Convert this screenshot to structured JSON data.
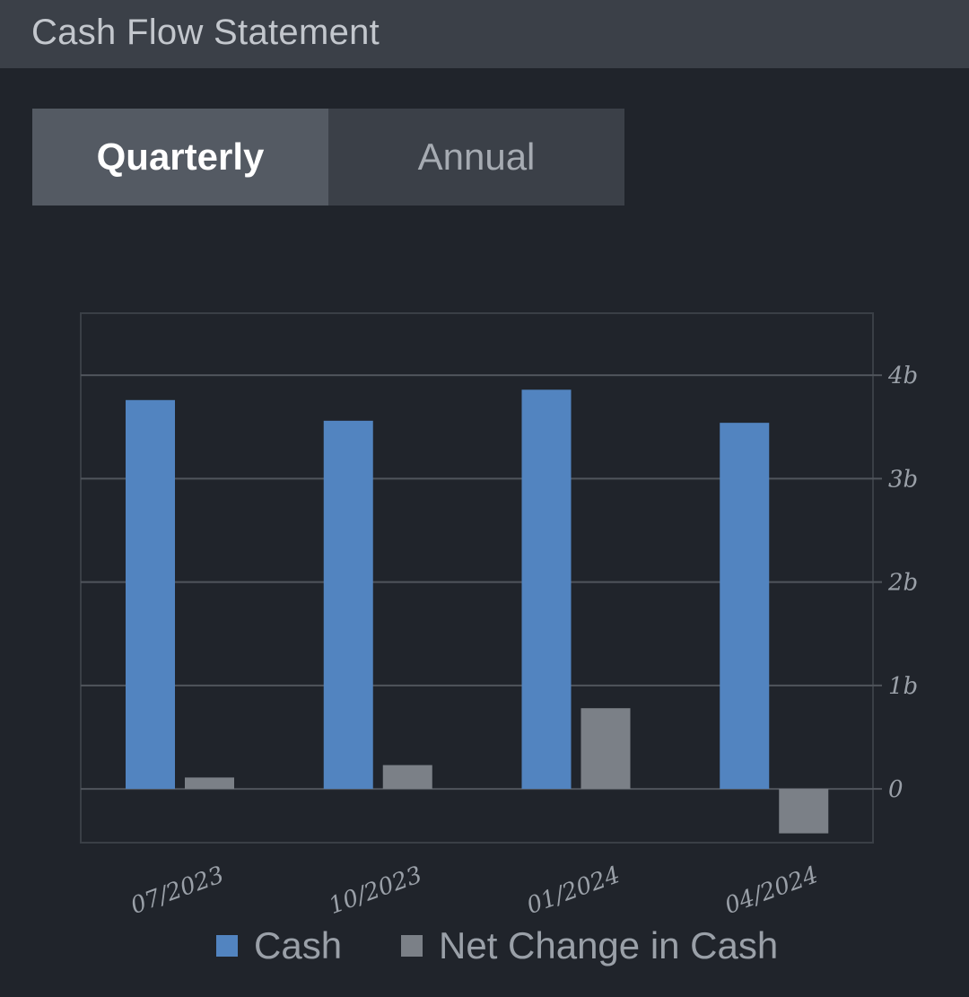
{
  "header": {
    "title": "Cash Flow Statement"
  },
  "tabs": [
    {
      "label": "Quarterly",
      "selected": true
    },
    {
      "label": "Annual",
      "selected": false
    }
  ],
  "colors": {
    "cash": "#5284c0",
    "net_change": "#7b8087",
    "gridline": "#50555c",
    "axis_text": "#9aa0a8"
  },
  "chart_data": {
    "type": "bar",
    "categories": [
      "07/2023",
      "10/2023",
      "01/2024",
      "04/2024"
    ],
    "series": [
      {
        "name": "Cash",
        "values": [
          3.76,
          3.56,
          3.86,
          3.54
        ]
      },
      {
        "name": "Net Change in Cash",
        "values": [
          0.11,
          0.23,
          0.78,
          -0.43
        ]
      }
    ],
    "ylim": [
      -0.52,
      4.6
    ],
    "yticks": [
      0,
      1,
      2,
      3,
      4
    ],
    "ytick_labels": [
      "0",
      "1b",
      "2b",
      "3b",
      "4b"
    ],
    "y_axis_position": "right",
    "grid": true,
    "legend": "bottom"
  }
}
